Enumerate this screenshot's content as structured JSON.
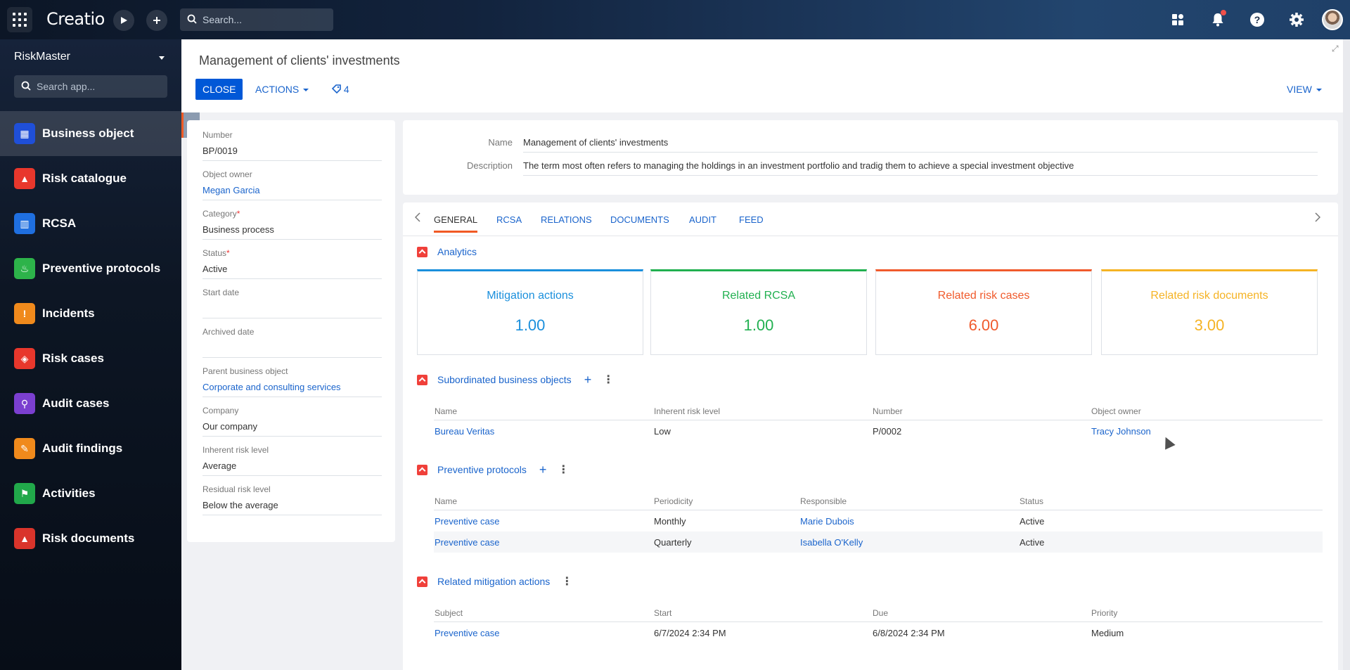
{
  "topbar": {
    "logo": "Creatio",
    "search_placeholder": "Search...",
    "icons": [
      "apps-grid-icon",
      "run-process-icon",
      "add-icon",
      "search-icon",
      "dashboards-icon",
      "bell-icon",
      "help-icon",
      "gear-icon",
      "avatar"
    ]
  },
  "sidebar": {
    "workspace": "RiskMaster",
    "search_placeholder": "Search app...",
    "items": [
      {
        "label": "Business object",
        "color": "#1f4fd8",
        "glyph": "▦",
        "active": true
      },
      {
        "label": "Risk catalogue",
        "color": "#e8372c",
        "glyph": "▲"
      },
      {
        "label": "RCSA",
        "color": "#1f6fe0",
        "glyph": "▥"
      },
      {
        "label": "Preventive protocols",
        "color": "#2db34a",
        "glyph": "♨"
      },
      {
        "label": "Incidents",
        "color": "#f08a1c",
        "glyph": "!"
      },
      {
        "label": "Risk cases",
        "color": "#e8372c",
        "glyph": "◈"
      },
      {
        "label": "Audit cases",
        "color": "#7b3fd0",
        "glyph": "⚲"
      },
      {
        "label": "Audit findings",
        "color": "#f08a1c",
        "glyph": "✎"
      },
      {
        "label": "Activities",
        "color": "#21a84a",
        "glyph": "⚑"
      },
      {
        "label": "Risk documents",
        "color": "#d9342b",
        "glyph": "▲"
      }
    ]
  },
  "header": {
    "title": "Management of clients' investments",
    "close_label": "CLOSE",
    "actions_label": "ACTIONS",
    "tag_count": "4",
    "view_label": "VIEW"
  },
  "left": {
    "fields": [
      {
        "label": "Number",
        "value": "BP/0019",
        "required": false,
        "link": false
      },
      {
        "label": "Object owner",
        "value": "Megan Garcia",
        "required": false,
        "link": true
      },
      {
        "label": "Category",
        "value": "Business process",
        "required": true,
        "link": false
      },
      {
        "label": "Status",
        "value": "Active",
        "required": true,
        "link": false
      },
      {
        "label": "Start date",
        "value": "",
        "required": false,
        "link": false
      },
      {
        "label": "Archived date",
        "value": "",
        "required": false,
        "link": false
      },
      {
        "label": "Parent business object",
        "value": "Corporate and consulting services",
        "required": false,
        "link": true
      },
      {
        "label": "Company",
        "value": "Our company",
        "required": false,
        "link": false
      },
      {
        "label": "Inherent risk level",
        "value": "Average",
        "required": false,
        "link": false
      },
      {
        "label": "Residual risk level",
        "value": "Below the average",
        "required": false,
        "link": false
      }
    ]
  },
  "name_card": {
    "name_label": "Name",
    "name_value": "Management of clients' investments",
    "desc_label": "Description",
    "desc_value": "The term most often refers to managing the holdings in an investment portfolio and tradig them to achieve a special investment objective"
  },
  "tabs": [
    "GENERAL",
    "RCSA",
    "RELATIONS",
    "DOCUMENTS",
    "AUDIT",
    "FEED"
  ],
  "analytics": {
    "title": "Analytics",
    "kpis": [
      {
        "label": "Mitigation actions",
        "value": "1.00",
        "color": "#1a8fdc"
      },
      {
        "label": "Related RCSA",
        "value": "1.00",
        "color": "#21b050"
      },
      {
        "label": "Related risk cases",
        "value": "6.00",
        "color": "#f05a2c"
      },
      {
        "label": "Related risk documents",
        "value": "3.00",
        "color": "#f5b324"
      }
    ]
  },
  "subordinated": {
    "title": "Subordinated business objects",
    "columns": [
      "Name",
      "Inherent risk level",
      "Number",
      "Object owner"
    ],
    "rows": [
      [
        "Bureau Veritas",
        "Low",
        "P/0002",
        "Tracy Johnson"
      ]
    ]
  },
  "preventive": {
    "title": "Preventive protocols",
    "columns": [
      "Name",
      "Periodicity",
      "Responsible",
      "Status"
    ],
    "rows": [
      [
        "Preventive case",
        "Monthly",
        "Marie Dubois",
        "Active"
      ],
      [
        "Preventive case",
        "Quarterly",
        "Isabella O'Kelly",
        "Active"
      ]
    ]
  },
  "mitigation": {
    "title": "Related mitigation actions",
    "columns": [
      "Subject",
      "Start",
      "Due",
      "Priority"
    ],
    "rows": [
      [
        "Preventive case",
        "6/7/2024 2:34 PM",
        "6/8/2024 2:34 PM",
        "Medium"
      ]
    ]
  }
}
